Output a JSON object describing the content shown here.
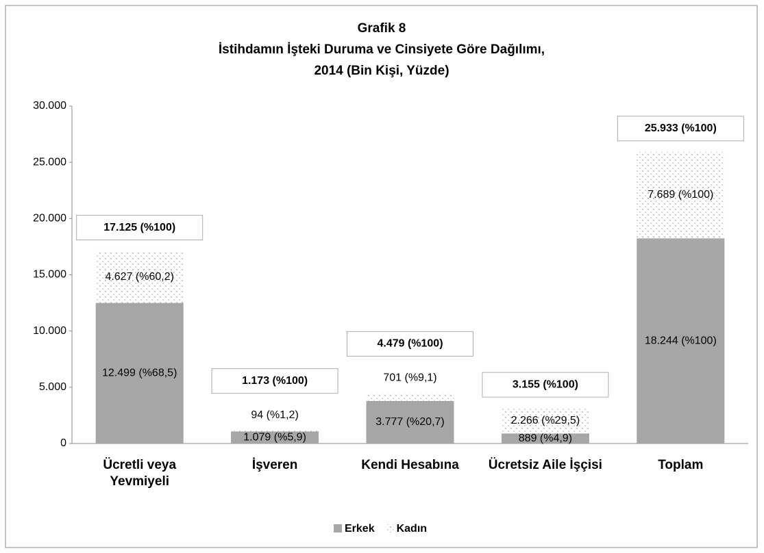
{
  "chart_data": {
    "type": "stacked_bar",
    "title": "Grafik 8",
    "subtitle": [
      "İstihdamın İşteki Duruma ve Cinsiyete Göre Dağılımı,",
      "2014 (Bin Kişi, Yüzde)"
    ],
    "categories": [
      "Ücretli veya Yevmiyeli",
      "İşveren",
      "Kendi Hesabına",
      "Ücretsiz Aile İşçisi",
      "Toplam"
    ],
    "series": [
      {
        "name": "Erkek",
        "color": "#a6a6a6",
        "values": [
          12499,
          1079,
          3777,
          889,
          18244
        ],
        "value_labels": [
          "12.499 (%68,5)",
          "1.079 (%5,9)",
          "3.777 (%20,7)",
          "889 (%4,9)",
          "18.244 (%100)"
        ]
      },
      {
        "name": "Kadın",
        "color": "#d0d0d0",
        "values": [
          4627,
          94,
          701,
          2266,
          7689
        ],
        "value_labels": [
          "4.627 (%60,2)",
          "94 (%1,2)",
          "701 (%9,1)",
          "2.266 (%29,5)",
          "7.689 (%100)"
        ]
      }
    ],
    "totals": [
      17125,
      1173,
      4479,
      3155,
      25933
    ],
    "total_labels": [
      "17.125 (%100)",
      "1.173 (%100)",
      "4.479 (%100)",
      "3.155 (%100)",
      "25.933 (%100)"
    ],
    "ylim": [
      0,
      30000
    ],
    "yticks": [
      0,
      {
        "value": 5000,
        "label": "5.000"
      },
      {
        "value": 10000,
        "label": "10.000"
      },
      {
        "value": 15000,
        "label": "15.000"
      },
      {
        "value": 20000,
        "label": "20.000"
      },
      {
        "value": 25000,
        "label": "25.000"
      },
      {
        "value": 30000,
        "label": "30.000"
      }
    ],
    "legend": "bottom"
  }
}
